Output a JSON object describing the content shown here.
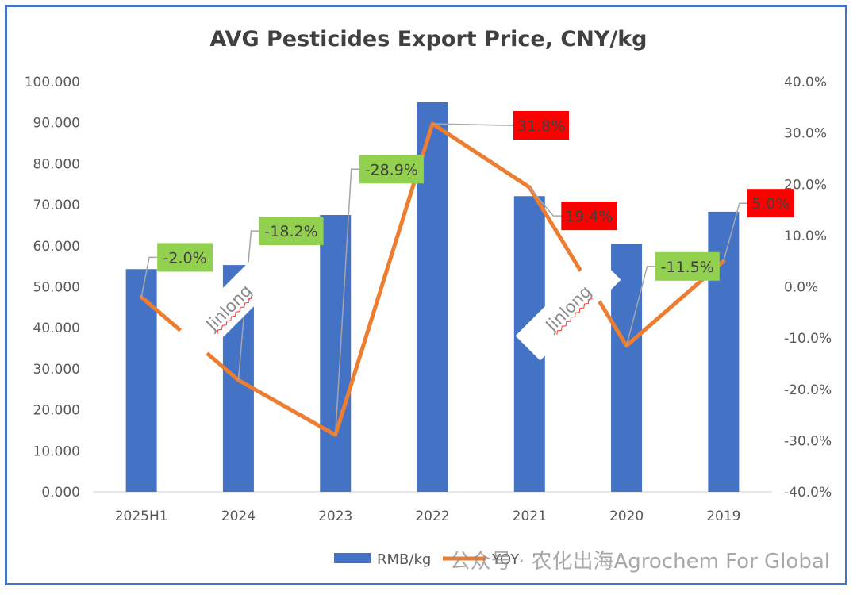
{
  "chart_data": {
    "type": "bar+line",
    "title": "AVG Pesticides Export Price, CNY/kg",
    "categories": [
      "2025H1",
      "2024",
      "2023",
      "2022",
      "2021",
      "2020",
      "2019"
    ],
    "series": [
      {
        "name": "RMB/kg",
        "type": "bar",
        "axis": "left",
        "values": [
          54.3,
          55.3,
          67.5,
          95.0,
          72.1,
          60.5,
          68.3
        ]
      },
      {
        "name": "YOY",
        "type": "line",
        "axis": "right",
        "values": [
          -2.0,
          -18.2,
          -28.9,
          31.8,
          19.4,
          -11.5,
          5.0
        ]
      }
    ],
    "data_labels": [
      "-2.0%",
      "-18.2%",
      "-28.9%",
      "31.8%",
      "19.4%",
      "-11.5%",
      "5.0%"
    ],
    "y_left": {
      "min": 0,
      "max": 100,
      "step": 10,
      "ticks": [
        "0.000",
        "10.000",
        "20.000",
        "30.000",
        "40.000",
        "50.000",
        "60.000",
        "70.000",
        "80.000",
        "90.000",
        "100.000"
      ]
    },
    "y_right": {
      "min": -40,
      "max": 40,
      "step": 10,
      "ticks": [
        "-40.0%",
        "-30.0%",
        "-20.0%",
        "-10.0%",
        "0.0%",
        "10.0%",
        "20.0%",
        "30.0%",
        "40.0%"
      ]
    },
    "legend": {
      "position": "bottom",
      "items": [
        "RMB/kg",
        "YOY"
      ]
    },
    "watermarks": [
      "Jinlong",
      "Jinlong"
    ]
  },
  "footer_watermark": "公众号 · 农化出海Agrochem For Global",
  "colors": {
    "bar": "#4472C4",
    "line": "#ED7D31",
    "positive_label_bg": "#FF0000",
    "negative_label_bg": "#92D050",
    "frame": "#4472C4"
  }
}
